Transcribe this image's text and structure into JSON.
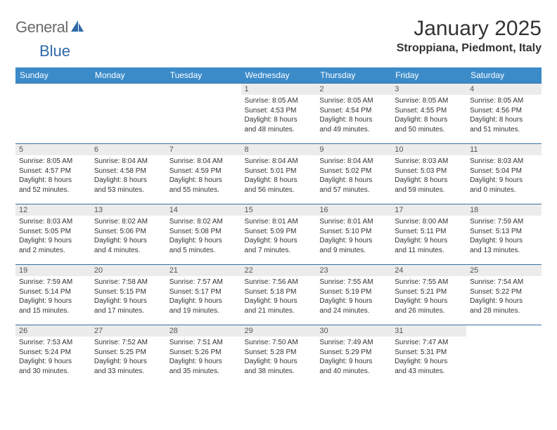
{
  "brand": {
    "general": "General",
    "blue": "Blue"
  },
  "title": "January 2025",
  "location": "Stroppiana, Piedmont, Italy",
  "colors": {
    "header_blue": "#3b8bc9",
    "divider_blue": "#3b6fa3",
    "daynum_bg": "#ececec",
    "text": "#333333",
    "logo_grey": "#6a6a6a",
    "logo_blue": "#2f6aa8"
  },
  "weekdays": [
    "Sunday",
    "Monday",
    "Tuesday",
    "Wednesday",
    "Thursday",
    "Friday",
    "Saturday"
  ],
  "weeks": [
    [
      {
        "n": "",
        "lines": [
          "",
          "",
          "",
          ""
        ]
      },
      {
        "n": "",
        "lines": [
          "",
          "",
          "",
          ""
        ]
      },
      {
        "n": "",
        "lines": [
          "",
          "",
          "",
          ""
        ]
      },
      {
        "n": "1",
        "lines": [
          "Sunrise: 8:05 AM",
          "Sunset: 4:53 PM",
          "Daylight: 8 hours",
          "and 48 minutes."
        ]
      },
      {
        "n": "2",
        "lines": [
          "Sunrise: 8:05 AM",
          "Sunset: 4:54 PM",
          "Daylight: 8 hours",
          "and 49 minutes."
        ]
      },
      {
        "n": "3",
        "lines": [
          "Sunrise: 8:05 AM",
          "Sunset: 4:55 PM",
          "Daylight: 8 hours",
          "and 50 minutes."
        ]
      },
      {
        "n": "4",
        "lines": [
          "Sunrise: 8:05 AM",
          "Sunset: 4:56 PM",
          "Daylight: 8 hours",
          "and 51 minutes."
        ]
      }
    ],
    [
      {
        "n": "5",
        "lines": [
          "Sunrise: 8:05 AM",
          "Sunset: 4:57 PM",
          "Daylight: 8 hours",
          "and 52 minutes."
        ]
      },
      {
        "n": "6",
        "lines": [
          "Sunrise: 8:04 AM",
          "Sunset: 4:58 PM",
          "Daylight: 8 hours",
          "and 53 minutes."
        ]
      },
      {
        "n": "7",
        "lines": [
          "Sunrise: 8:04 AM",
          "Sunset: 4:59 PM",
          "Daylight: 8 hours",
          "and 55 minutes."
        ]
      },
      {
        "n": "8",
        "lines": [
          "Sunrise: 8:04 AM",
          "Sunset: 5:01 PM",
          "Daylight: 8 hours",
          "and 56 minutes."
        ]
      },
      {
        "n": "9",
        "lines": [
          "Sunrise: 8:04 AM",
          "Sunset: 5:02 PM",
          "Daylight: 8 hours",
          "and 57 minutes."
        ]
      },
      {
        "n": "10",
        "lines": [
          "Sunrise: 8:03 AM",
          "Sunset: 5:03 PM",
          "Daylight: 8 hours",
          "and 59 minutes."
        ]
      },
      {
        "n": "11",
        "lines": [
          "Sunrise: 8:03 AM",
          "Sunset: 5:04 PM",
          "Daylight: 9 hours",
          "and 0 minutes."
        ]
      }
    ],
    [
      {
        "n": "12",
        "lines": [
          "Sunrise: 8:03 AM",
          "Sunset: 5:05 PM",
          "Daylight: 9 hours",
          "and 2 minutes."
        ]
      },
      {
        "n": "13",
        "lines": [
          "Sunrise: 8:02 AM",
          "Sunset: 5:06 PM",
          "Daylight: 9 hours",
          "and 4 minutes."
        ]
      },
      {
        "n": "14",
        "lines": [
          "Sunrise: 8:02 AM",
          "Sunset: 5:08 PM",
          "Daylight: 9 hours",
          "and 5 minutes."
        ]
      },
      {
        "n": "15",
        "lines": [
          "Sunrise: 8:01 AM",
          "Sunset: 5:09 PM",
          "Daylight: 9 hours",
          "and 7 minutes."
        ]
      },
      {
        "n": "16",
        "lines": [
          "Sunrise: 8:01 AM",
          "Sunset: 5:10 PM",
          "Daylight: 9 hours",
          "and 9 minutes."
        ]
      },
      {
        "n": "17",
        "lines": [
          "Sunrise: 8:00 AM",
          "Sunset: 5:11 PM",
          "Daylight: 9 hours",
          "and 11 minutes."
        ]
      },
      {
        "n": "18",
        "lines": [
          "Sunrise: 7:59 AM",
          "Sunset: 5:13 PM",
          "Daylight: 9 hours",
          "and 13 minutes."
        ]
      }
    ],
    [
      {
        "n": "19",
        "lines": [
          "Sunrise: 7:59 AM",
          "Sunset: 5:14 PM",
          "Daylight: 9 hours",
          "and 15 minutes."
        ]
      },
      {
        "n": "20",
        "lines": [
          "Sunrise: 7:58 AM",
          "Sunset: 5:15 PM",
          "Daylight: 9 hours",
          "and 17 minutes."
        ]
      },
      {
        "n": "21",
        "lines": [
          "Sunrise: 7:57 AM",
          "Sunset: 5:17 PM",
          "Daylight: 9 hours",
          "and 19 minutes."
        ]
      },
      {
        "n": "22",
        "lines": [
          "Sunrise: 7:56 AM",
          "Sunset: 5:18 PM",
          "Daylight: 9 hours",
          "and 21 minutes."
        ]
      },
      {
        "n": "23",
        "lines": [
          "Sunrise: 7:55 AM",
          "Sunset: 5:19 PM",
          "Daylight: 9 hours",
          "and 24 minutes."
        ]
      },
      {
        "n": "24",
        "lines": [
          "Sunrise: 7:55 AM",
          "Sunset: 5:21 PM",
          "Daylight: 9 hours",
          "and 26 minutes."
        ]
      },
      {
        "n": "25",
        "lines": [
          "Sunrise: 7:54 AM",
          "Sunset: 5:22 PM",
          "Daylight: 9 hours",
          "and 28 minutes."
        ]
      }
    ],
    [
      {
        "n": "26",
        "lines": [
          "Sunrise: 7:53 AM",
          "Sunset: 5:24 PM",
          "Daylight: 9 hours",
          "and 30 minutes."
        ]
      },
      {
        "n": "27",
        "lines": [
          "Sunrise: 7:52 AM",
          "Sunset: 5:25 PM",
          "Daylight: 9 hours",
          "and 33 minutes."
        ]
      },
      {
        "n": "28",
        "lines": [
          "Sunrise: 7:51 AM",
          "Sunset: 5:26 PM",
          "Daylight: 9 hours",
          "and 35 minutes."
        ]
      },
      {
        "n": "29",
        "lines": [
          "Sunrise: 7:50 AM",
          "Sunset: 5:28 PM",
          "Daylight: 9 hours",
          "and 38 minutes."
        ]
      },
      {
        "n": "30",
        "lines": [
          "Sunrise: 7:49 AM",
          "Sunset: 5:29 PM",
          "Daylight: 9 hours",
          "and 40 minutes."
        ]
      },
      {
        "n": "31",
        "lines": [
          "Sunrise: 7:47 AM",
          "Sunset: 5:31 PM",
          "Daylight: 9 hours",
          "and 43 minutes."
        ]
      },
      {
        "n": "",
        "lines": [
          "",
          "",
          "",
          ""
        ]
      }
    ]
  ]
}
